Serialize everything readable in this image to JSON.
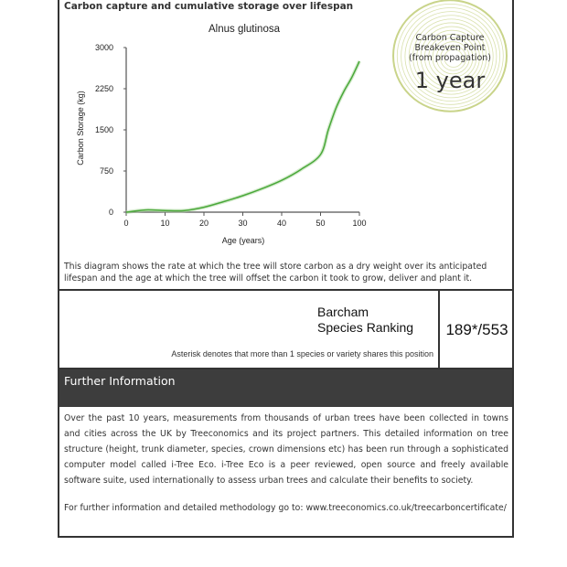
{
  "section_title": "Carbon capture and cumulative storage over lifespan",
  "chart_data": {
    "type": "line",
    "title": "Alnus glutinosa",
    "xlabel": "Age (years)",
    "ylabel": "Carbon Storage (kg)",
    "x_ticks": [
      "0",
      "10",
      "20",
      "30",
      "40",
      "50",
      "100"
    ],
    "x_tick_values": [
      0,
      10,
      20,
      30,
      40,
      50,
      100
    ],
    "y_ticks": [
      "0",
      "750",
      "1500",
      "2250",
      "3000"
    ],
    "ylim": [
      0,
      3000
    ],
    "grid": false,
    "x": [
      0,
      5,
      10,
      15,
      20,
      25,
      30,
      35,
      40,
      45,
      50,
      60,
      70,
      80,
      90,
      100
    ],
    "y": [
      0,
      40,
      30,
      30,
      90,
      190,
      300,
      430,
      580,
      780,
      1050,
      1500,
      1900,
      2200,
      2450,
      2750
    ],
    "line_color": "#4aa83a"
  },
  "badge": {
    "line1": "Carbon Capture",
    "line2": "Breakeven Point",
    "line3": "(from propagation)",
    "value": "1 year",
    "ring_color": "#c9d48a"
  },
  "description": "This diagram shows the rate at which the tree will store carbon as a dry weight over its anticipated lifespan and the age at which the tree will offset the carbon it took to grow, deliver and plant it.",
  "ranking": {
    "label_line1": "Barcham",
    "label_line2": "Species Ranking",
    "value": "189*/553",
    "note": "Asterisk denotes that more than 1 species or variety shares this position"
  },
  "further_info": {
    "title": "Further Information",
    "body": "Over the past 10 years, measurements from thousands of urban trees have been collected in towns and cities across the UK by Treeconomics and its project partners. This detailed information on tree structure (height, trunk diameter, species, crown dimensions etc) has been run through a sophisticated computer model called i-Tree Eco. i-Tree Eco is a peer reviewed, open source and freely available software suite, used internationally to assess urban trees and calculate their benefits to society.",
    "link_text": "For further information and detailed methodology go to: www.treeconomics.co.uk/treecarboncertificate/"
  }
}
